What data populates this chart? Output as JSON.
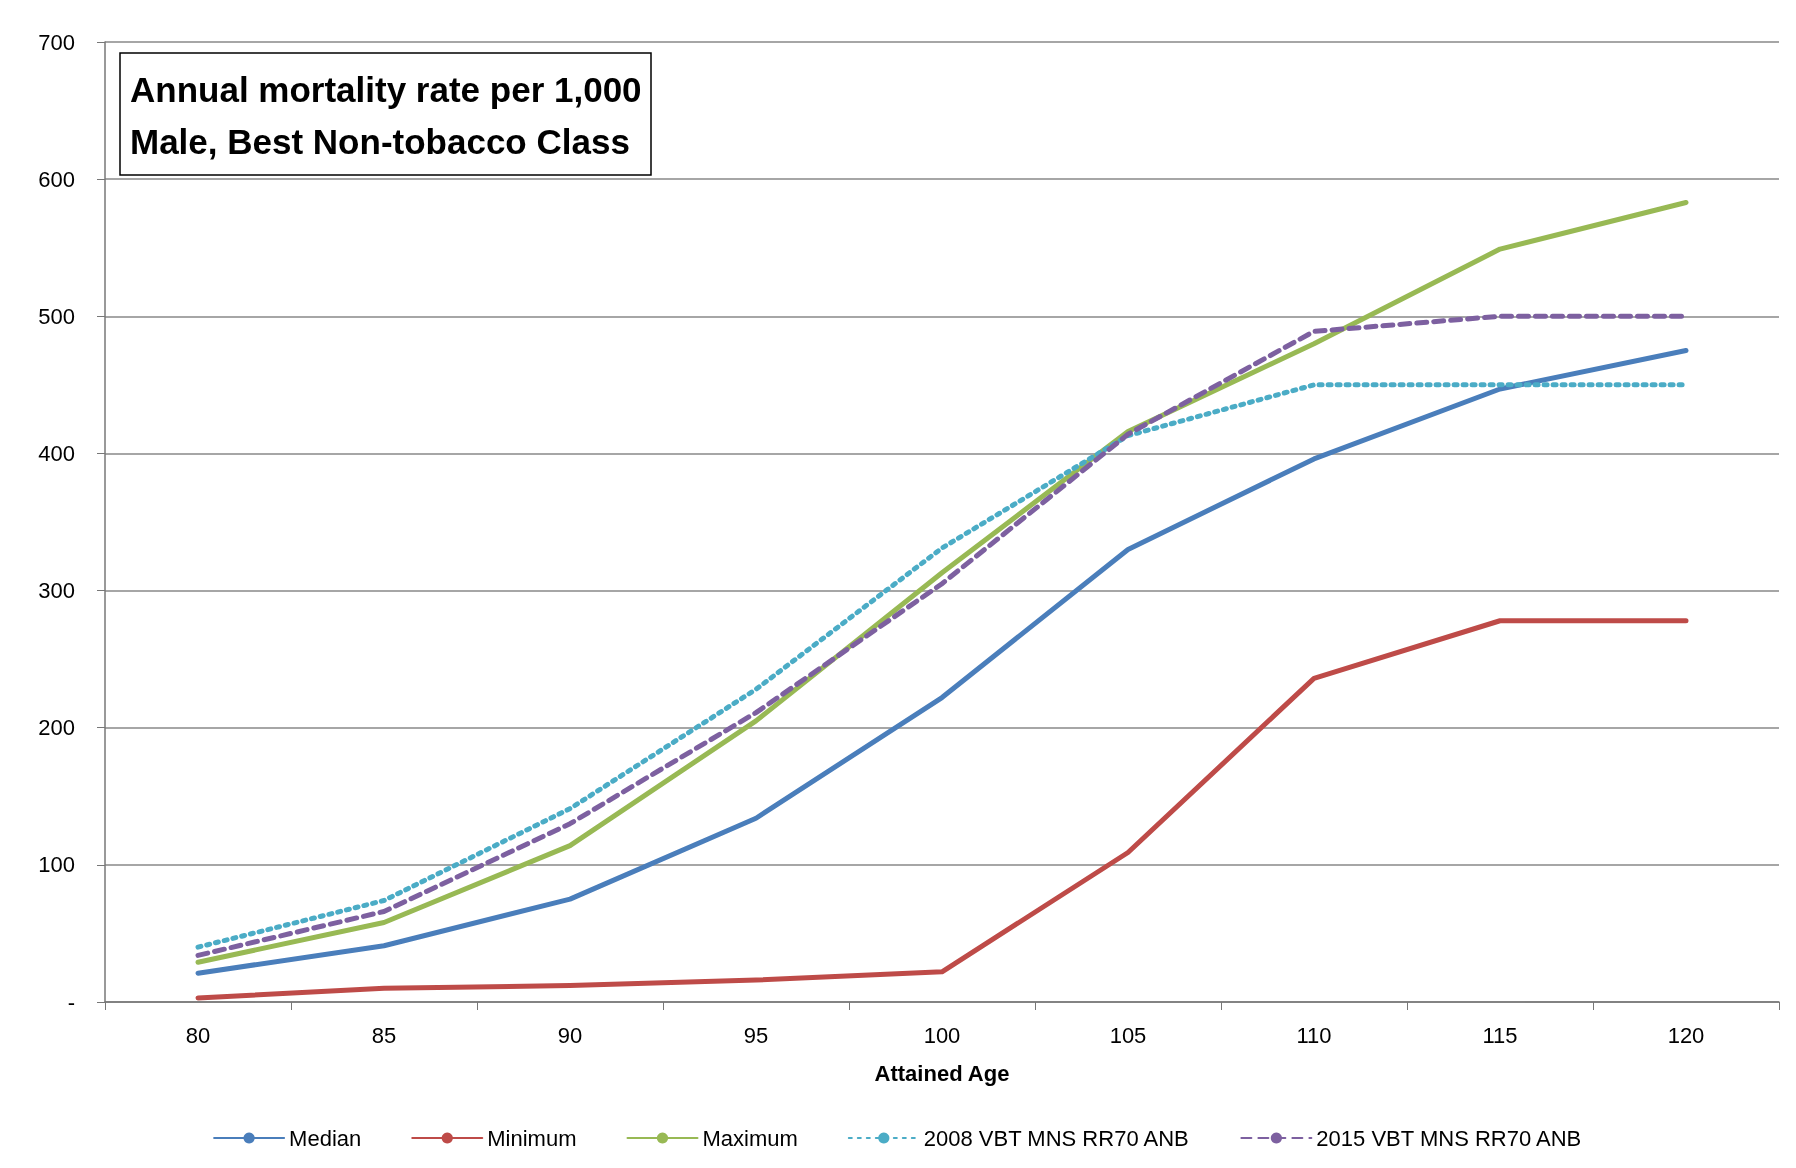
{
  "chart_data": {
    "type": "line",
    "title": "Annual mortality rate per 1,000\nMale, Best Non-tobacco Class",
    "xlabel": "Attained Age",
    "categories": [
      "80",
      "85",
      "90",
      "95",
      "100",
      "105",
      "110",
      "115",
      "120"
    ],
    "series": [
      {
        "name": "Median",
        "color": "#4a7ebb",
        "line_style": "solid",
        "values": [
          21,
          41,
          75,
          134,
          222,
          330,
          396,
          447,
          475
        ]
      },
      {
        "name": "Minimum",
        "color": "#be4b48",
        "line_style": "solid",
        "values": [
          3,
          10,
          12,
          16,
          22,
          109,
          236,
          278,
          278
        ]
      },
      {
        "name": "Maximum",
        "color": "#98b954",
        "line_style": "solid",
        "values": [
          29,
          58,
          114,
          205,
          313,
          416,
          480,
          549,
          583
        ]
      },
      {
        "name": "2008 VBT MNS RR70 ANB",
        "color": "#4bacc6",
        "line_style": "dotted",
        "values": [
          40,
          74,
          141,
          228,
          331,
          413,
          450,
          450,
          450
        ]
      },
      {
        "name": "2015 VBT MNS RR70 ANB",
        "color": "#7d60a0",
        "line_style": "dashed",
        "values": [
          34,
          66,
          130,
          211,
          305,
          414,
          489,
          500,
          500
        ]
      }
    ],
    "ylim": [
      0,
      700
    ],
    "yticks": [
      {
        "value": 0,
        "label": "-"
      },
      100,
      200,
      300,
      400,
      500,
      600,
      700
    ],
    "grid": "y",
    "legend": "bottom",
    "marker": "none"
  }
}
